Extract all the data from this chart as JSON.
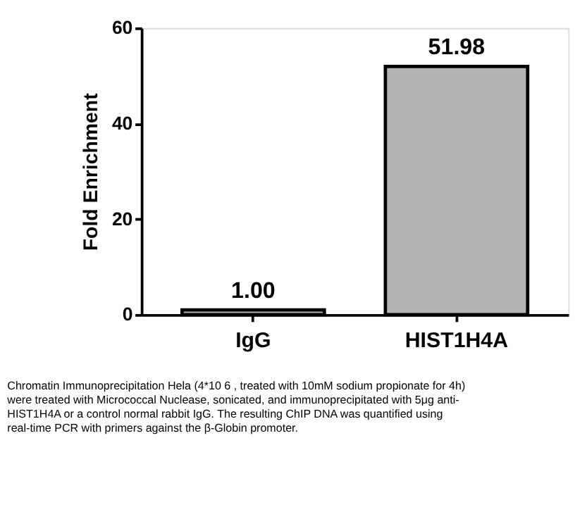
{
  "chart_data": {
    "type": "bar",
    "ylabel": "Fold Enrichment",
    "categories": [
      "IgG",
      "HIST1H4A"
    ],
    "values": [
      1.0,
      51.98
    ],
    "color": "#b4b4b4",
    "ylim": [
      0,
      60
    ],
    "yticks": [
      0,
      20,
      40,
      60
    ],
    "grid": false,
    "data_labels": true,
    "value_labels": [
      "1.00",
      "51.98"
    ],
    "annotations": [
      "Chromatin Immunoprecipitation Hela (4*10 6 , treated with 10mM sodium propionate for 4h) were treated with Micrococcal Nuclease, sonicated, and immunoprecipitated with 5μg anti-HIST1H4A or a control normal rabbit IgG. The resulting ChIP DNA was quantified using real-time PCR with primers against the β-Globin promoter."
    ]
  }
}
